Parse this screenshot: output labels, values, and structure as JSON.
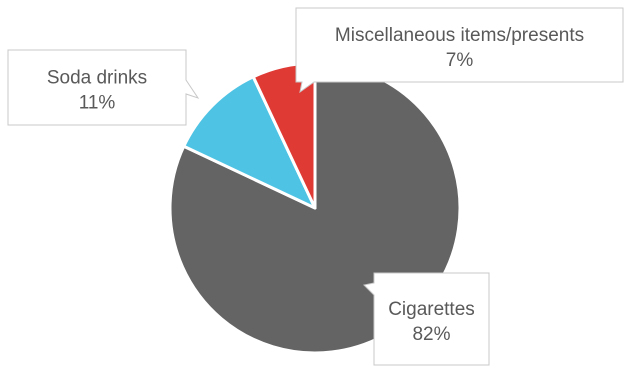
{
  "chart_data": {
    "type": "pie",
    "title": "",
    "legend": "none",
    "slices": [
      {
        "label": "Cigarettes",
        "value": 82,
        "display": "82%",
        "color": "#646464"
      },
      {
        "label": "Soda drinks",
        "value": 11,
        "display": "11%",
        "color": "#4fc3e3"
      },
      {
        "label": "Miscellaneous items/presents",
        "value": 7,
        "display": "7%",
        "color": "#e03a35"
      }
    ]
  }
}
